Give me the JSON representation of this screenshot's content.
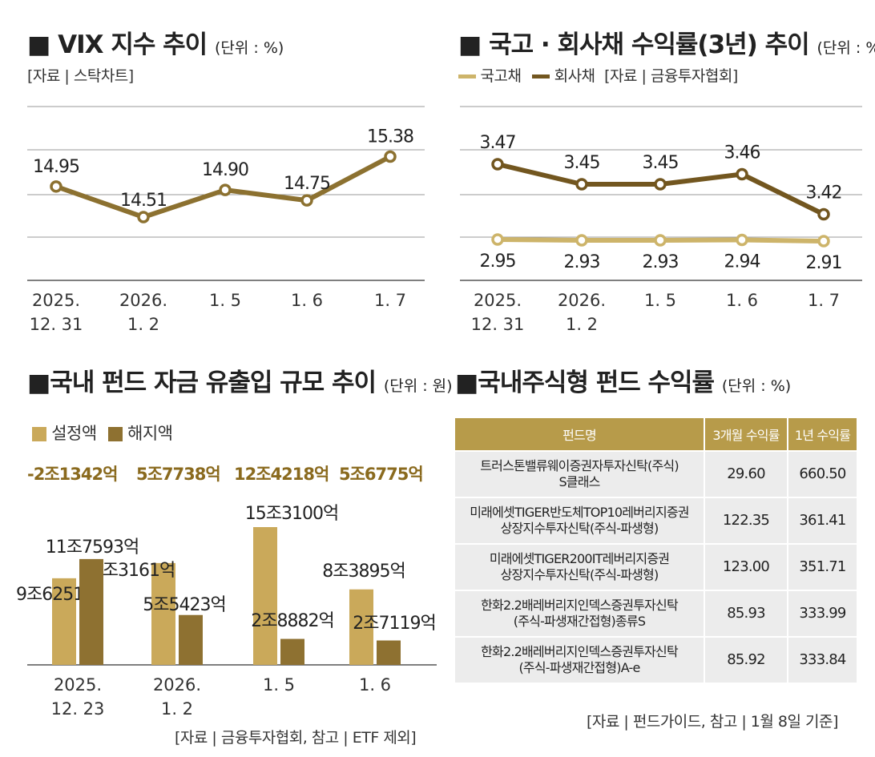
{
  "vix": {
    "title": "VIX 지수 추이",
    "unit": "(단위 : %)",
    "source": "[자료 | 스탁차트]",
    "chart_data": {
      "type": "line",
      "title": "VIX 지수 추이",
      "categories": [
        "2025. 12. 31",
        "2026. 1. 2",
        "1. 5",
        "1. 6",
        "1. 7"
      ],
      "tick_lines": [
        [
          "2025.",
          "12. 31"
        ],
        [
          "2026.",
          "1. 2"
        ],
        [
          "1. 5"
        ],
        [
          "1. 6"
        ],
        [
          "1. 7"
        ]
      ],
      "series": [
        {
          "name": "VIX",
          "color": "#8c7130",
          "values": [
            14.95,
            14.51,
            14.9,
            14.75,
            15.38
          ]
        }
      ],
      "labels": [
        "14.95",
        "14.51",
        "14.90",
        "14.75",
        "15.38"
      ],
      "ylim": [
        13.6,
        16.1
      ]
    }
  },
  "bonds": {
    "title": "국고 · 회사채 수익률(3년) 추이",
    "unit": "(단위 : %)",
    "legend": [
      "국고채",
      "회사채"
    ],
    "source": "[자료 | 금융투자협회]",
    "chart_data": {
      "type": "line",
      "title": "국고 · 회사채 수익률(3년) 추이",
      "categories": [
        "2025. 12. 31",
        "2026. 1. 2",
        "1. 5",
        "1. 6",
        "1. 7"
      ],
      "tick_lines": [
        [
          "2025.",
          "12. 31"
        ],
        [
          "2026.",
          "1. 2"
        ],
        [
          "1. 5"
        ],
        [
          "1. 6"
        ],
        [
          "1. 7"
        ]
      ],
      "series": [
        {
          "name": "회사채",
          "color": "#72561f",
          "values": [
            3.47,
            3.45,
            3.45,
            3.46,
            3.42
          ],
          "labels": [
            "3.47",
            "3.45",
            "3.45",
            "3.46",
            "3.42"
          ]
        },
        {
          "name": "국고채",
          "color": "#cdb46a",
          "values": [
            2.95,
            2.93,
            2.93,
            2.94,
            2.91
          ],
          "labels": [
            "2.95",
            "2.93",
            "2.93",
            "2.94",
            "2.91"
          ]
        }
      ]
    }
  },
  "fundflow": {
    "title": "국내 펀드 자금 유출입 규모 추이",
    "unit": "(단위 : 원)",
    "legend": [
      "설정액",
      "해지액"
    ],
    "net": [
      "-2조1342억",
      "5조7738억",
      "12조4218억",
      "5조6775억"
    ],
    "source": "[자료 | 금융투자협회, 참고 | ETF 제외]",
    "chart_data": {
      "type": "bar",
      "title": "국내 펀드 자금 유출입 규모 추이",
      "categories": [
        "2025. 12. 23",
        "2026. 1. 2",
        "1. 5",
        "1. 6"
      ],
      "tick_lines": [
        [
          "2025.",
          "12. 23"
        ],
        [
          "2026.",
          "1. 2"
        ],
        [
          "1. 5"
        ],
        [
          "1. 6"
        ]
      ],
      "unit": "억원",
      "series": [
        {
          "name": "설정액",
          "color": "#caa95a",
          "values": [
            96251,
            113161,
            153100,
            83895
          ],
          "labels": [
            "9조6251억",
            "11조3161억",
            "15조3100억",
            "8조3895억"
          ]
        },
        {
          "name": "해지액",
          "color": "#8e7131",
          "values": [
            117593,
            55423,
            28882,
            27119
          ],
          "labels": [
            "11조7593억",
            "5조5423억",
            "2조8882억",
            "2조7119억"
          ]
        }
      ]
    }
  },
  "fundreturn": {
    "title": "국내주식형 펀드 수익률",
    "unit": "(단위 : %)",
    "source": "[자료 | 펀드가이드, 참고 | 1월 8일 기준]",
    "chart_data": {
      "type": "table",
      "columns": [
        "펀드명",
        "3개월 수익률",
        "1년 수익률"
      ],
      "rows": [
        {
          "name": [
            "트러스톤밸류웨이증권자투자신탁(주식)",
            "S클래스"
          ],
          "r3m": "29.60",
          "r1y": "660.50"
        },
        {
          "name": [
            "미래에셋TIGER반도체TOP10레버리지증권",
            "상장지수투자신탁(주식-파생형)"
          ],
          "r3m": "122.35",
          "r1y": "361.41"
        },
        {
          "name": [
            "미래에셋TIGER200IT레버리지증권",
            "상장지수투자신탁(주식-파생형)"
          ],
          "r3m": "123.00",
          "r1y": "351.71"
        },
        {
          "name": [
            "한화2.2배레버리지인덱스증권투자신탁",
            "(주식-파생재간접형)종류S"
          ],
          "r3m": "85.93",
          "r1y": "333.99"
        },
        {
          "name": [
            "한화2.2배레버리지인덱스증권투자신탁",
            "(주식-파생재간접형)A-e"
          ],
          "r3m": "85.92",
          "r1y": "333.84"
        }
      ]
    }
  }
}
